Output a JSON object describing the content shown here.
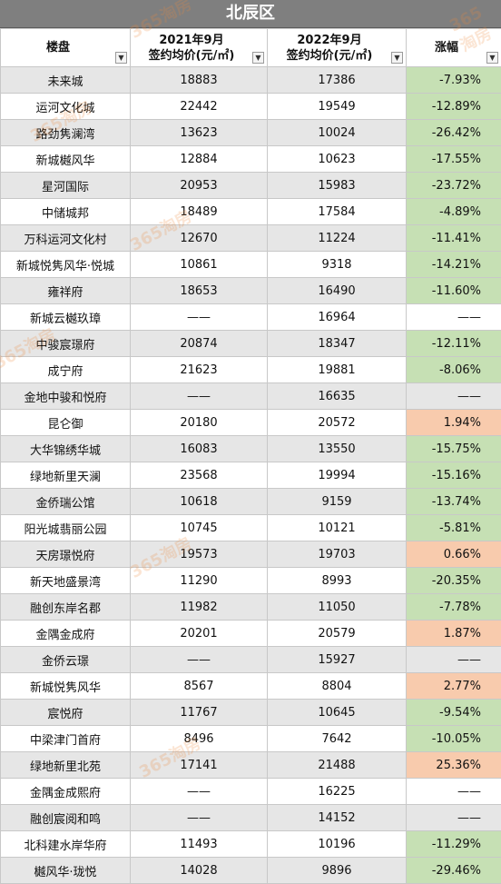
{
  "title": "北辰区",
  "headers": {
    "project": "楼盘",
    "price_2021": [
      "2021年9月",
      "签约均价(元/㎡)"
    ],
    "price_2022": [
      "2022年9月",
      "签约均价(元/㎡)"
    ],
    "change": "涨幅"
  },
  "filter_icon": "dropdown-arrow-icon",
  "watermark": "365淘房",
  "colors": {
    "down": "#c6e0b4",
    "up": "#f8cbad",
    "title_bg": "#7f7f7f"
  },
  "rows": [
    {
      "name": "未来城",
      "p2021": "18883",
      "p2022": "17386",
      "change": "-7.93%",
      "dir": "down"
    },
    {
      "name": "运河文化城",
      "p2021": "22442",
      "p2022": "19549",
      "change": "-12.89%",
      "dir": "down"
    },
    {
      "name": "路劲隽澜湾",
      "p2021": "13623",
      "p2022": "10024",
      "change": "-26.42%",
      "dir": "down"
    },
    {
      "name": "新城樾风华",
      "p2021": "12884",
      "p2022": "10623",
      "change": "-17.55%",
      "dir": "down"
    },
    {
      "name": "星河国际",
      "p2021": "20953",
      "p2022": "15983",
      "change": "-23.72%",
      "dir": "down"
    },
    {
      "name": "中储城邦",
      "p2021": "18489",
      "p2022": "17584",
      "change": "-4.89%",
      "dir": "down"
    },
    {
      "name": "万科运河文化村",
      "p2021": "12670",
      "p2022": "11224",
      "change": "-11.41%",
      "dir": "down"
    },
    {
      "name": "新城悦隽风华·悦城",
      "p2021": "10861",
      "p2022": "9318",
      "change": "-14.21%",
      "dir": "down"
    },
    {
      "name": "雍祥府",
      "p2021": "18653",
      "p2022": "16490",
      "change": "-11.60%",
      "dir": "down"
    },
    {
      "name": "新城云樾玖璋",
      "p2021": "——",
      "p2022": "16964",
      "change": "——",
      "dir": "none"
    },
    {
      "name": "中骏宸璟府",
      "p2021": "20874",
      "p2022": "18347",
      "change": "-12.11%",
      "dir": "down"
    },
    {
      "name": "成宁府",
      "p2021": "21623",
      "p2022": "19881",
      "change": "-8.06%",
      "dir": "down"
    },
    {
      "name": "金地中骏和悦府",
      "p2021": "——",
      "p2022": "16635",
      "change": "——",
      "dir": "none"
    },
    {
      "name": "昆仑御",
      "p2021": "20180",
      "p2022": "20572",
      "change": "1.94%",
      "dir": "up"
    },
    {
      "name": "大华锦绣华城",
      "p2021": "16083",
      "p2022": "13550",
      "change": "-15.75%",
      "dir": "down"
    },
    {
      "name": "绿地新里天澜",
      "p2021": "23568",
      "p2022": "19994",
      "change": "-15.16%",
      "dir": "down"
    },
    {
      "name": "金侨瑞公馆",
      "p2021": "10618",
      "p2022": "9159",
      "change": "-13.74%",
      "dir": "down"
    },
    {
      "name": "阳光城翡丽公园",
      "p2021": "10745",
      "p2022": "10121",
      "change": "-5.81%",
      "dir": "down"
    },
    {
      "name": "天房璟悦府",
      "p2021": "19573",
      "p2022": "19703",
      "change": "0.66%",
      "dir": "up"
    },
    {
      "name": "新天地盛景湾",
      "p2021": "11290",
      "p2022": "8993",
      "change": "-20.35%",
      "dir": "down"
    },
    {
      "name": "融创东岸名郡",
      "p2021": "11982",
      "p2022": "11050",
      "change": "-7.78%",
      "dir": "down"
    },
    {
      "name": "金隅金成府",
      "p2021": "20201",
      "p2022": "20579",
      "change": "1.87%",
      "dir": "up"
    },
    {
      "name": "金侨云璟",
      "p2021": "——",
      "p2022": "15927",
      "change": "——",
      "dir": "none"
    },
    {
      "name": "新城悦隽风华",
      "p2021": "8567",
      "p2022": "8804",
      "change": "2.77%",
      "dir": "up"
    },
    {
      "name": "宸悦府",
      "p2021": "11767",
      "p2022": "10645",
      "change": "-9.54%",
      "dir": "down"
    },
    {
      "name": "中梁津门首府",
      "p2021": "8496",
      "p2022": "7642",
      "change": "-10.05%",
      "dir": "down"
    },
    {
      "name": "绿地新里北苑",
      "p2021": "17141",
      "p2022": "21488",
      "change": "25.36%",
      "dir": "up"
    },
    {
      "name": "金隅金成熙府",
      "p2021": "——",
      "p2022": "16225",
      "change": "——",
      "dir": "none"
    },
    {
      "name": "融创宸阅和鸣",
      "p2021": "——",
      "p2022": "14152",
      "change": "——",
      "dir": "none"
    },
    {
      "name": "北科建水岸华府",
      "p2021": "11493",
      "p2022": "10196",
      "change": "-11.29%",
      "dir": "down"
    },
    {
      "name": "樾风华·珑悦",
      "p2021": "14028",
      "p2022": "9896",
      "change": "-29.46%",
      "dir": "down"
    }
  ]
}
